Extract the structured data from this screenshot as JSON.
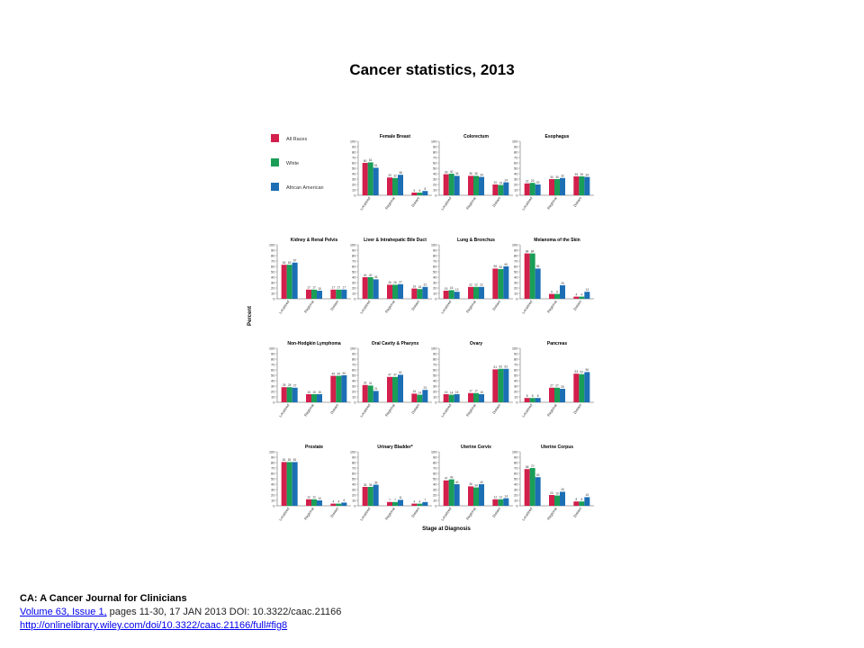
{
  "slide": {
    "title": "Cancer statistics, 2013"
  },
  "citation": {
    "journal": "CA: A Cancer Journal for Clinicians",
    "volume_link": "Volume 63, Issue 1,",
    "details": " pages 11-30, 17 JAN 2013 DOI: 10.3322/caac.21166",
    "url": "http://onlinelibrary.wiley.com/doi/10.3322/caac.21166/full#fig8"
  },
  "colors": {
    "all_races": "#d21f4b",
    "white": "#1a9e57",
    "african_american": "#1c6fb5"
  },
  "chart_data": {
    "type": "bar",
    "ylabel": "Percent",
    "xlabel": "Stage at Diagnosis",
    "ylim": [
      0,
      100
    ],
    "yticks": [
      0,
      10,
      20,
      30,
      40,
      50,
      60,
      70,
      80,
      90,
      100
    ],
    "categories": [
      "Localized",
      "Regional",
      "Distant"
    ],
    "series_names": [
      "All Races",
      "White",
      "African American"
    ],
    "grid": false,
    "legend": "top-left",
    "panels": [
      {
        "title": "Female Breast",
        "values": [
          [
            60,
            61,
            51
          ],
          [
            33,
            32,
            38
          ],
          [
            5,
            5,
            8
          ]
        ]
      },
      {
        "title": "Colorectum",
        "values": [
          [
            39,
            40,
            36
          ],
          [
            36,
            36,
            34
          ],
          [
            20,
            19,
            24
          ]
        ]
      },
      {
        "title": "Esophagus",
        "values": [
          [
            22,
            23,
            20
          ],
          [
            30,
            30,
            32
          ],
          [
            35,
            35,
            34
          ]
        ]
      },
      {
        "title": "Kidney & Renal Pelvis",
        "values": [
          [
            63,
            63,
            67
          ],
          [
            17,
            17,
            15
          ],
          [
            17,
            17,
            17
          ]
        ]
      },
      {
        "title": "Liver & Intrahepatic Bile Duct",
        "values": [
          [
            40,
            40,
            36
          ],
          [
            26,
            26,
            27
          ],
          [
            19,
            18,
            22
          ]
        ]
      },
      {
        "title": "Lung & Bronchus",
        "values": [
          [
            15,
            16,
            13
          ],
          [
            22,
            22,
            22
          ],
          [
            56,
            55,
            60
          ]
        ]
      },
      {
        "title": "Melanoma of the Skin",
        "values": [
          [
            84,
            84,
            56
          ],
          [
            9,
            9,
            25
          ],
          [
            4,
            4,
            13
          ]
        ]
      },
      {
        "title": "Non-Hodgkin Lymphoma",
        "values": [
          [
            28,
            28,
            27
          ],
          [
            15,
            15,
            15
          ],
          [
            49,
            49,
            50
          ]
        ]
      },
      {
        "title": "Oral Cavity & Pharynx",
        "values": [
          [
            32,
            31,
            21
          ],
          [
            47,
            47,
            51
          ],
          [
            16,
            14,
            23
          ]
        ]
      },
      {
        "title": "Ovary",
        "values": [
          [
            15,
            14,
            15
          ],
          [
            17,
            17,
            15
          ],
          [
            61,
            62,
            62
          ]
        ]
      },
      {
        "title": "Pancreas",
        "values": [
          [
            8,
            8,
            8
          ],
          [
            27,
            27,
            25
          ],
          [
            53,
            52,
            56
          ]
        ]
      },
      {
        "title": "Prostate",
        "values": [
          [
            81,
            81,
            81
          ],
          [
            12,
            12,
            10
          ],
          [
            4,
            4,
            6
          ]
        ]
      },
      {
        "title": "Urinary Bladder*",
        "values": [
          [
            35,
            35,
            39
          ],
          [
            7,
            7,
            11
          ],
          [
            4,
            4,
            7
          ]
        ]
      },
      {
        "title": "Uterine Cervix",
        "values": [
          [
            47,
            49,
            40
          ],
          [
            36,
            34,
            40
          ],
          [
            12,
            12,
            14
          ]
        ]
      },
      {
        "title": "Uterine Corpus",
        "values": [
          [
            68,
            70,
            53
          ],
          [
            20,
            19,
            26
          ],
          [
            8,
            8,
            16
          ]
        ]
      }
    ]
  }
}
